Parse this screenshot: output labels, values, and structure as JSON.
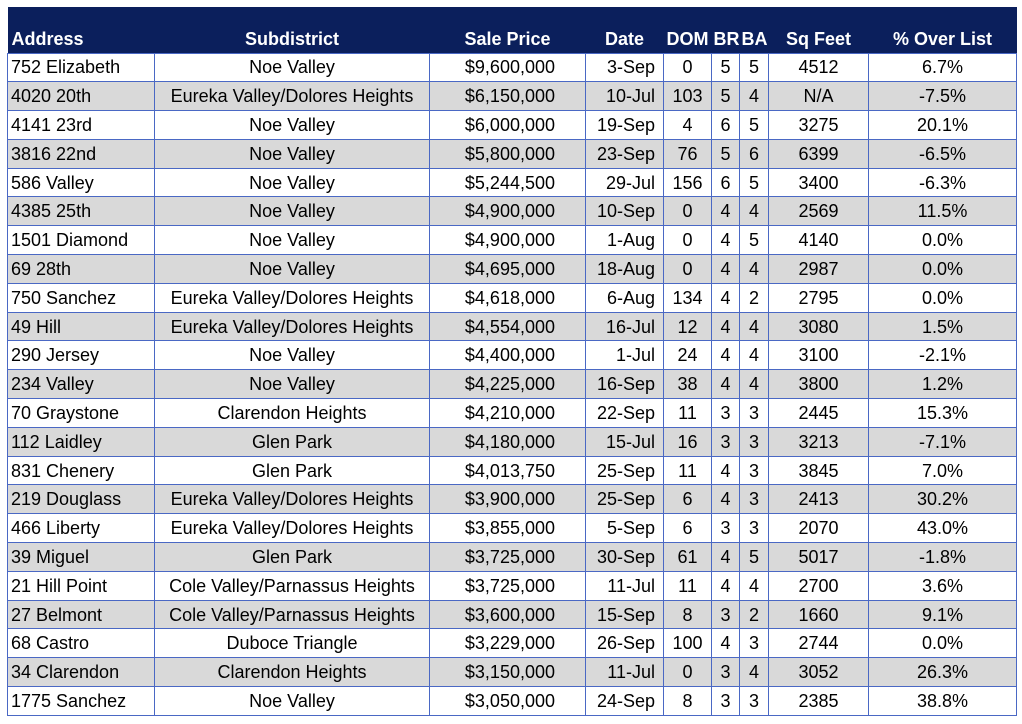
{
  "table": {
    "headers": {
      "address": "Address",
      "subdistrict": "Subdistrict",
      "sale_price": "Sale Price",
      "date": "Date",
      "dom": "DOM",
      "br": "BR",
      "ba": "BA",
      "sq_feet": "Sq Feet",
      "pct_over_list": "% Over List"
    },
    "rows": [
      {
        "address": "752 Elizabeth",
        "subdistrict": "Noe Valley",
        "sale_price": "$9,600,000",
        "date": "3-Sep",
        "dom": "0",
        "br": "5",
        "ba": "5",
        "sq_feet": "4512",
        "pct_over_list": "6.7%"
      },
      {
        "address": "4020 20th",
        "subdistrict": "Eureka Valley/Dolores Heights",
        "sale_price": "$6,150,000",
        "date": "10-Jul",
        "dom": "103",
        "br": "5",
        "ba": "4",
        "sq_feet": "N/A",
        "pct_over_list": "-7.5%"
      },
      {
        "address": "4141 23rd",
        "subdistrict": "Noe Valley",
        "sale_price": "$6,000,000",
        "date": "19-Sep",
        "dom": "4",
        "br": "6",
        "ba": "5",
        "sq_feet": "3275",
        "pct_over_list": "20.1%"
      },
      {
        "address": "3816 22nd",
        "subdistrict": "Noe Valley",
        "sale_price": "$5,800,000",
        "date": "23-Sep",
        "dom": "76",
        "br": "5",
        "ba": "6",
        "sq_feet": "6399",
        "pct_over_list": "-6.5%"
      },
      {
        "address": "586 Valley",
        "subdistrict": "Noe Valley",
        "sale_price": "$5,244,500",
        "date": "29-Jul",
        "dom": "156",
        "br": "6",
        "ba": "5",
        "sq_feet": "3400",
        "pct_over_list": "-6.3%"
      },
      {
        "address": "4385 25th",
        "subdistrict": "Noe Valley",
        "sale_price": "$4,900,000",
        "date": "10-Sep",
        "dom": "0",
        "br": "4",
        "ba": "4",
        "sq_feet": "2569",
        "pct_over_list": "11.5%"
      },
      {
        "address": "1501 Diamond",
        "subdistrict": "Noe Valley",
        "sale_price": "$4,900,000",
        "date": "1-Aug",
        "dom": "0",
        "br": "4",
        "ba": "5",
        "sq_feet": "4140",
        "pct_over_list": "0.0%"
      },
      {
        "address": "69 28th",
        "subdistrict": "Noe Valley",
        "sale_price": "$4,695,000",
        "date": "18-Aug",
        "dom": "0",
        "br": "4",
        "ba": "4",
        "sq_feet": "2987",
        "pct_over_list": "0.0%"
      },
      {
        "address": "750 Sanchez",
        "subdistrict": "Eureka Valley/Dolores Heights",
        "sale_price": "$4,618,000",
        "date": "6-Aug",
        "dom": "134",
        "br": "4",
        "ba": "2",
        "sq_feet": "2795",
        "pct_over_list": "0.0%"
      },
      {
        "address": "49 Hill",
        "subdistrict": "Eureka Valley/Dolores Heights",
        "sale_price": "$4,554,000",
        "date": "16-Jul",
        "dom": "12",
        "br": "4",
        "ba": "4",
        "sq_feet": "3080",
        "pct_over_list": "1.5%"
      },
      {
        "address": "290 Jersey",
        "subdistrict": "Noe Valley",
        "sale_price": "$4,400,000",
        "date": "1-Jul",
        "dom": "24",
        "br": "4",
        "ba": "4",
        "sq_feet": "3100",
        "pct_over_list": "-2.1%"
      },
      {
        "address": "234 Valley",
        "subdistrict": "Noe Valley",
        "sale_price": "$4,225,000",
        "date": "16-Sep",
        "dom": "38",
        "br": "4",
        "ba": "4",
        "sq_feet": "3800",
        "pct_over_list": "1.2%"
      },
      {
        "address": "70 Graystone",
        "subdistrict": "Clarendon Heights",
        "sale_price": "$4,210,000",
        "date": "22-Sep",
        "dom": "11",
        "br": "3",
        "ba": "3",
        "sq_feet": "2445",
        "pct_over_list": "15.3%"
      },
      {
        "address": "112 Laidley",
        "subdistrict": "Glen Park",
        "sale_price": "$4,180,000",
        "date": "15-Jul",
        "dom": "16",
        "br": "3",
        "ba": "3",
        "sq_feet": "3213",
        "pct_over_list": "-7.1%"
      },
      {
        "address": "831 Chenery",
        "subdistrict": "Glen Park",
        "sale_price": "$4,013,750",
        "date": "25-Sep",
        "dom": "11",
        "br": "4",
        "ba": "3",
        "sq_feet": "3845",
        "pct_over_list": "7.0%"
      },
      {
        "address": "219 Douglass",
        "subdistrict": "Eureka Valley/Dolores Heights",
        "sale_price": "$3,900,000",
        "date": "25-Sep",
        "dom": "6",
        "br": "4",
        "ba": "3",
        "sq_feet": "2413",
        "pct_over_list": "30.2%"
      },
      {
        "address": "466 Liberty",
        "subdistrict": "Eureka Valley/Dolores Heights",
        "sale_price": "$3,855,000",
        "date": "5-Sep",
        "dom": "6",
        "br": "3",
        "ba": "3",
        "sq_feet": "2070",
        "pct_over_list": "43.0%"
      },
      {
        "address": "39 Miguel",
        "subdistrict": "Glen Park",
        "sale_price": "$3,725,000",
        "date": "30-Sep",
        "dom": "61",
        "br": "4",
        "ba": "5",
        "sq_feet": "5017",
        "pct_over_list": "-1.8%"
      },
      {
        "address": "21 Hill Point",
        "subdistrict": "Cole Valley/Parnassus Heights",
        "sale_price": "$3,725,000",
        "date": "11-Jul",
        "dom": "11",
        "br": "4",
        "ba": "4",
        "sq_feet": "2700",
        "pct_over_list": "3.6%"
      },
      {
        "address": "27 Belmont",
        "subdistrict": "Cole Valley/Parnassus Heights",
        "sale_price": "$3,600,000",
        "date": "15-Sep",
        "dom": "8",
        "br": "3",
        "ba": "2",
        "sq_feet": "1660",
        "pct_over_list": "9.1%"
      },
      {
        "address": "68 Castro",
        "subdistrict": "Duboce Triangle",
        "sale_price": "$3,229,000",
        "date": "26-Sep",
        "dom": "100",
        "br": "4",
        "ba": "3",
        "sq_feet": "2744",
        "pct_over_list": "0.0%"
      },
      {
        "address": "34 Clarendon",
        "subdistrict": "Clarendon Heights",
        "sale_price": "$3,150,000",
        "date": "11-Jul",
        "dom": "0",
        "br": "3",
        "ba": "4",
        "sq_feet": "3052",
        "pct_over_list": "26.3%"
      },
      {
        "address": "1775 Sanchez",
        "subdistrict": "Noe Valley",
        "sale_price": "$3,050,000",
        "date": "24-Sep",
        "dom": "8",
        "br": "3",
        "ba": "3",
        "sq_feet": "2385",
        "pct_over_list": "38.8%"
      }
    ]
  }
}
